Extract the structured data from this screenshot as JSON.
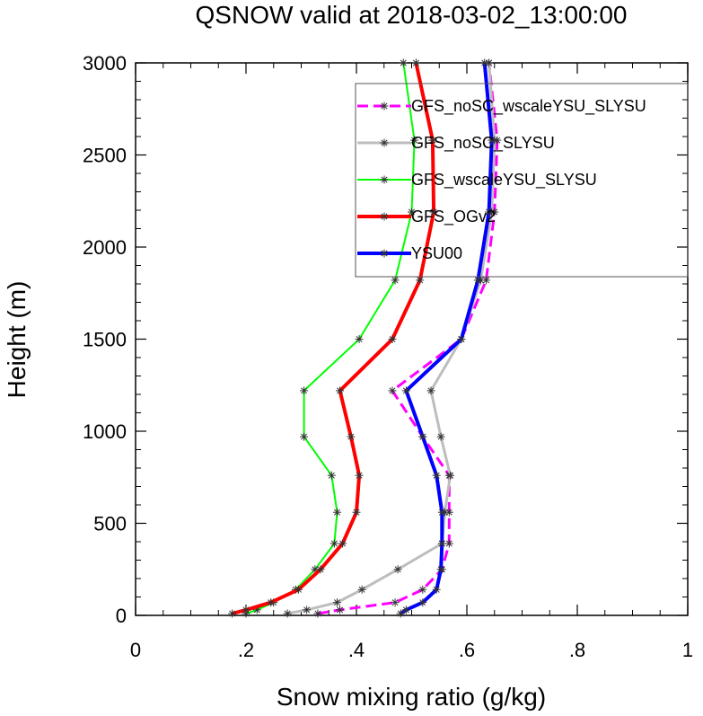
{
  "chart_data": {
    "type": "line",
    "title": "QSNOW valid at 2018-03-02_13:00:00",
    "xlabel": "Snow mixing ratio (g/kg)",
    "ylabel": "Height (m)",
    "xlim": [
      0,
      1
    ],
    "ylim": [
      0,
      3000
    ],
    "xticks": [
      0,
      0.2,
      0.4,
      0.6,
      0.8,
      1.0
    ],
    "xtick_labels": [
      "0",
      ".2",
      ".4",
      ".6",
      ".8",
      "1"
    ],
    "yticks": [
      0,
      500,
      1000,
      1500,
      2000,
      2500,
      3000
    ],
    "ytick_labels": [
      "0",
      "500",
      "1000",
      "1500",
      "2000",
      "2500",
      "3000"
    ],
    "grid": false,
    "legend_position": "top-right",
    "heights": [
      10,
      30,
      70,
      140,
      250,
      390,
      560,
      760,
      970,
      1220,
      1500,
      1820,
      2190,
      2580,
      3000
    ],
    "series": [
      {
        "name": "GFS_noSC_wscaleYSU_SLYSU",
        "color": "#ff00ff",
        "style": "dashed",
        "width": 3,
        "values": [
          0.33,
          0.37,
          0.47,
          0.52,
          0.555,
          0.568,
          0.568,
          0.568,
          0.52,
          0.465,
          0.59,
          0.635,
          0.65,
          0.655,
          0.64
        ]
      },
      {
        "name": "GFS_noSC_SLYSU",
        "color": "#bdbdbd",
        "style": "solid",
        "width": 3,
        "values": [
          0.275,
          0.31,
          0.365,
          0.41,
          0.475,
          0.555,
          0.56,
          0.57,
          0.553,
          0.535,
          0.59,
          0.625,
          0.645,
          0.65,
          0.64
        ]
      },
      {
        "name": "GFS_wscaleYSU_SLYSU",
        "color": "#00ff00",
        "style": "solid",
        "width": 2,
        "values": [
          0.2,
          0.22,
          0.25,
          0.29,
          0.325,
          0.36,
          0.365,
          0.355,
          0.305,
          0.305,
          0.405,
          0.47,
          0.5,
          0.505,
          0.485
        ]
      },
      {
        "name": "GFS_OGv2",
        "color": "#ff0000",
        "style": "solid",
        "width": 4,
        "values": [
          0.175,
          0.2,
          0.245,
          0.295,
          0.335,
          0.375,
          0.4,
          0.405,
          0.39,
          0.37,
          0.465,
          0.515,
          0.54,
          0.538,
          0.508
        ]
      },
      {
        "name": "YSU00",
        "color": "#0000ff",
        "style": "solid",
        "width": 4,
        "values": [
          0.48,
          0.49,
          0.52,
          0.545,
          0.553,
          0.555,
          0.555,
          0.545,
          0.52,
          0.49,
          0.59,
          0.62,
          0.64,
          0.645,
          0.632
        ]
      }
    ]
  }
}
